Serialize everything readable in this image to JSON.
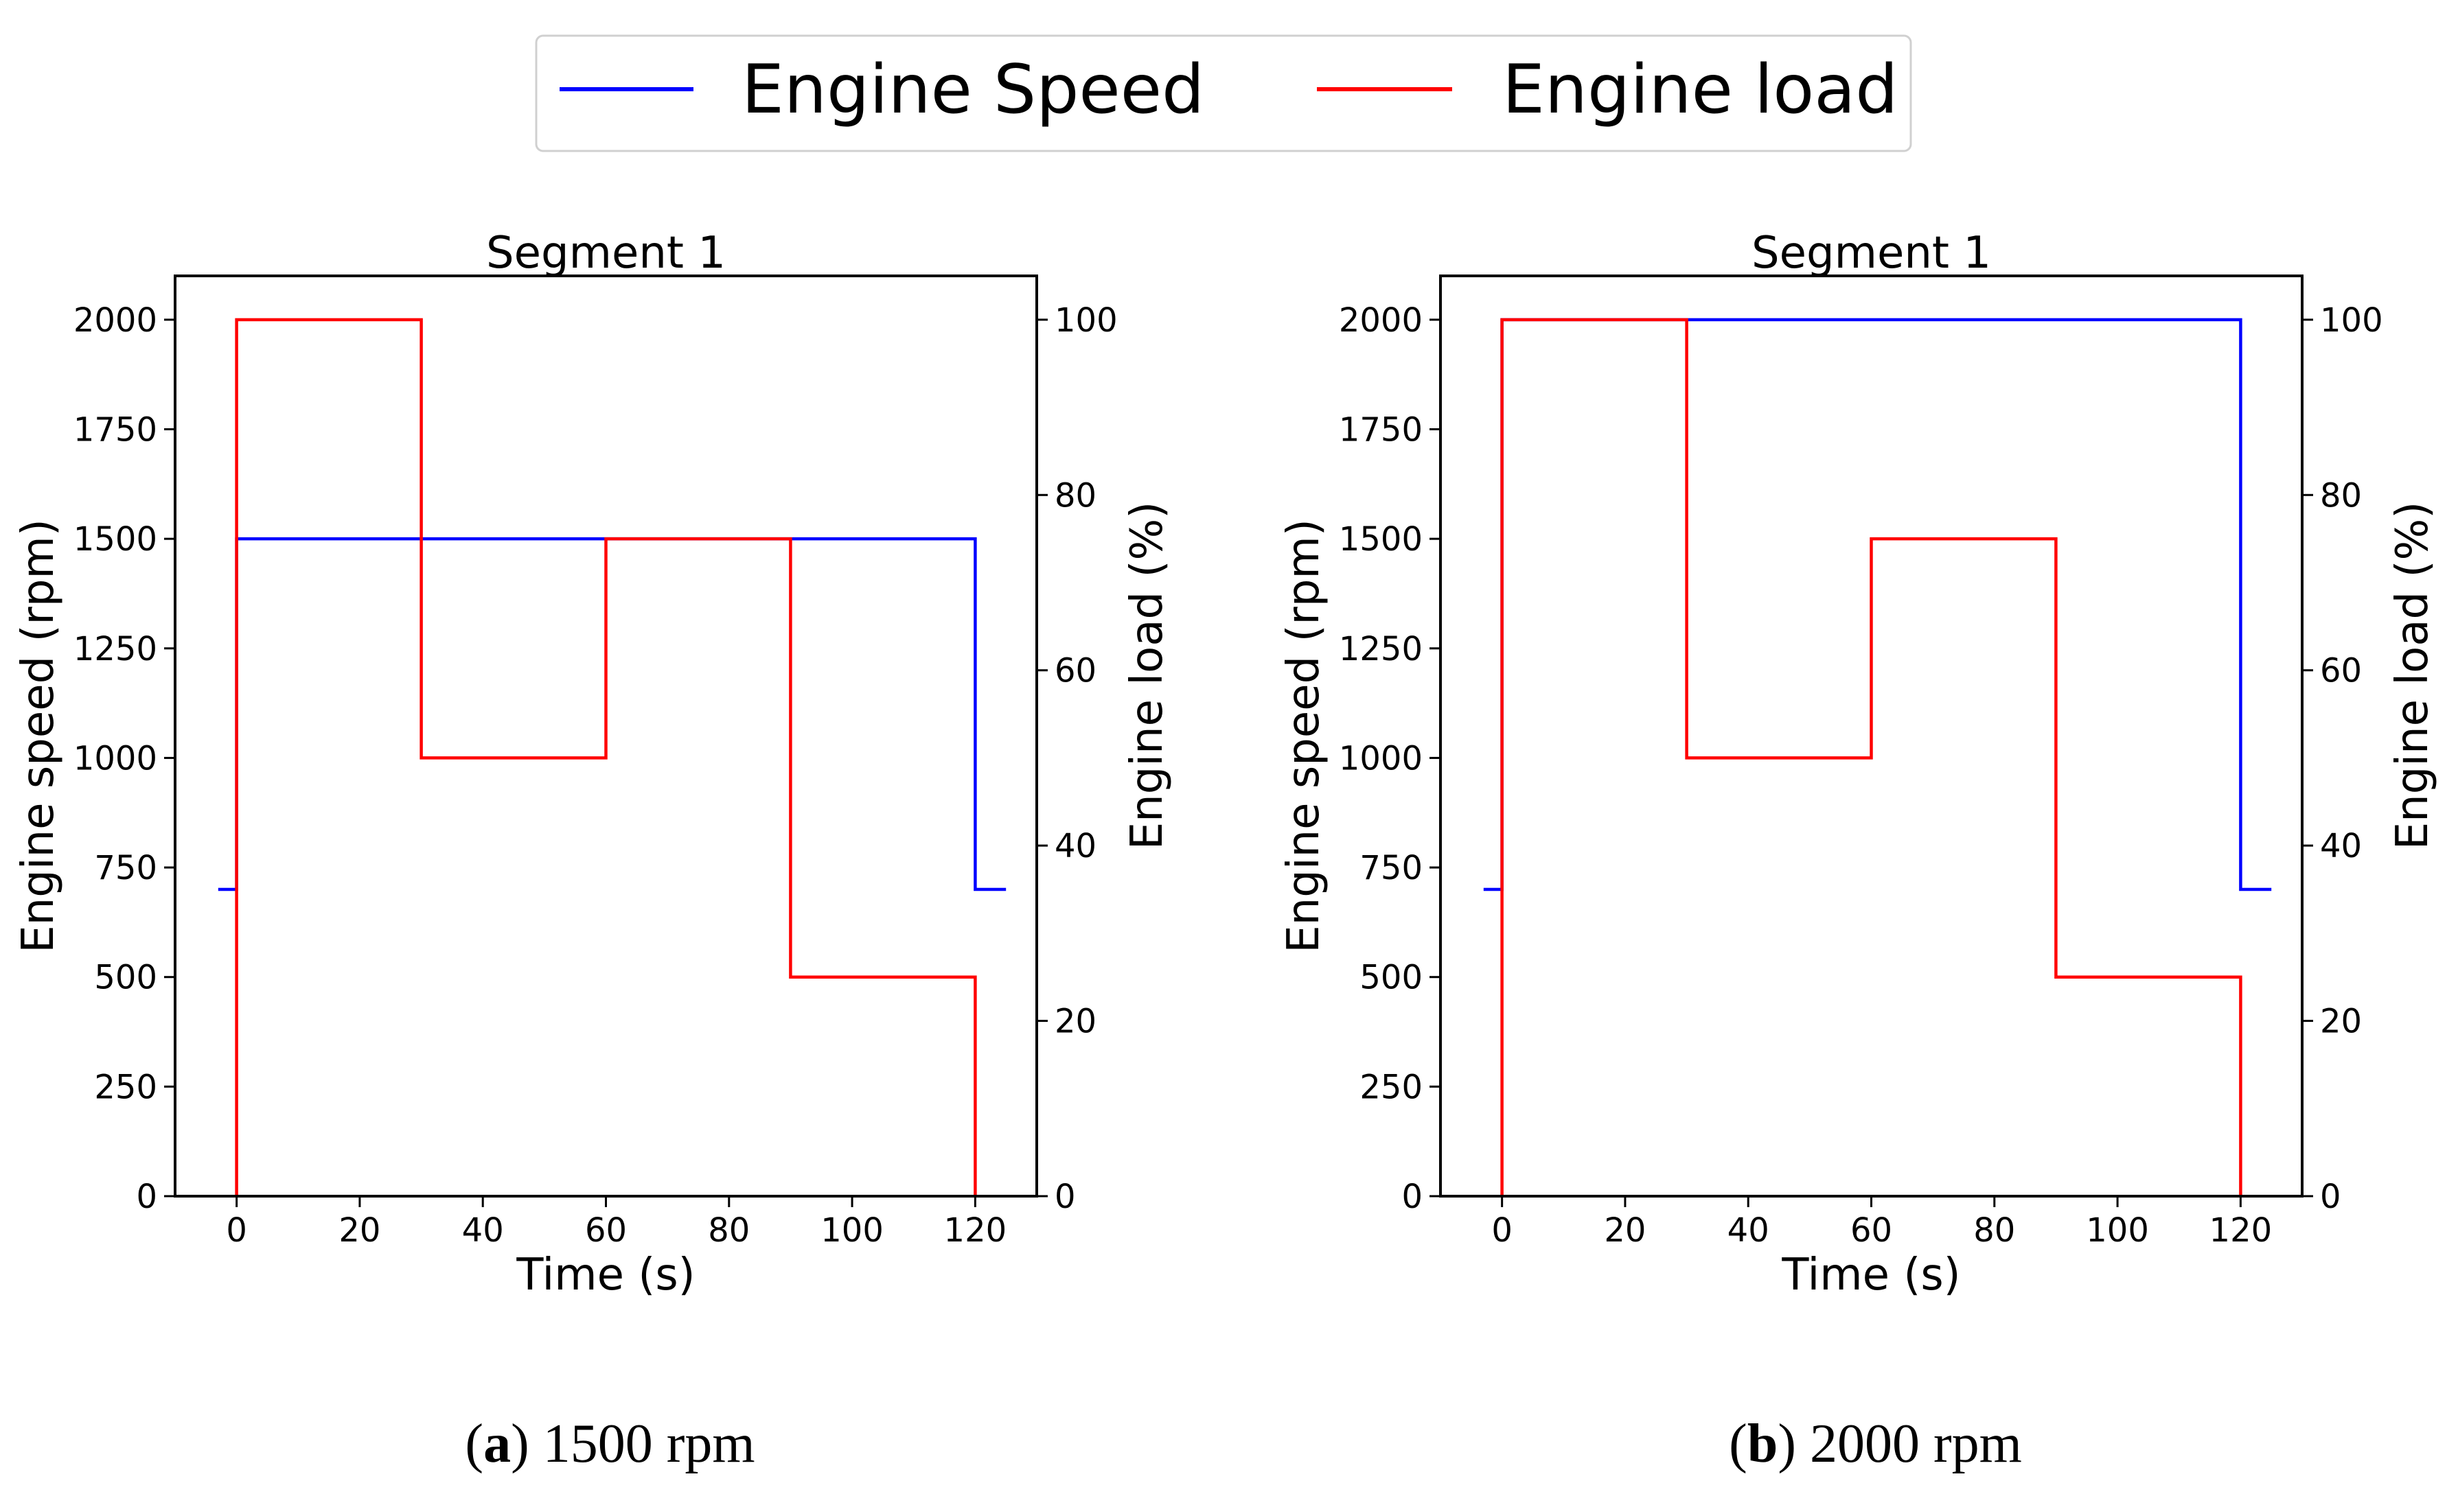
{
  "legend": {
    "entries": [
      {
        "name": "Engine Speed",
        "color": "#0000ff"
      },
      {
        "name": "Engine load",
        "color": "#ff0000"
      }
    ]
  },
  "chart_data": [
    {
      "type": "line",
      "title": "Segment 1",
      "xlabel": "Time (s)",
      "ylabel": "Engine speed (rpm)",
      "y2label": "Engine load (%)",
      "xlim": [
        -10,
        130
      ],
      "ylim": [
        0,
        2100
      ],
      "y2lim": [
        0,
        105
      ],
      "xticks": [
        0,
        20,
        40,
        60,
        80,
        100,
        120
      ],
      "yticks": [
        0,
        250,
        500,
        750,
        1000,
        1250,
        1500,
        1750,
        2000
      ],
      "y2ticks": [
        0,
        20,
        40,
        60,
        80,
        100
      ],
      "series": [
        {
          "name": "Engine Speed",
          "axis": "left",
          "color": "#0000ff",
          "x": [
            -3,
            0,
            0,
            120,
            120,
            125
          ],
          "y": [
            700,
            700,
            1500,
            1500,
            700,
            700
          ]
        },
        {
          "name": "Engine load",
          "axis": "right",
          "color": "#ff0000",
          "x": [
            0,
            0,
            30,
            30,
            60,
            60,
            90,
            90,
            120,
            120
          ],
          "y": [
            0,
            100,
            100,
            50,
            50,
            75,
            75,
            25,
            25,
            0
          ]
        }
      ],
      "caption": {
        "label": "a",
        "text": "1500 rpm"
      }
    },
    {
      "type": "line",
      "title": "Segment 1",
      "xlabel": "Time (s)",
      "ylabel": "Engine speed (rpm)",
      "y2label": "Engine load (%)",
      "xlim": [
        -10,
        130
      ],
      "ylim": [
        0,
        2100
      ],
      "y2lim": [
        0,
        105
      ],
      "xticks": [
        0,
        20,
        40,
        60,
        80,
        100,
        120
      ],
      "yticks": [
        0,
        250,
        500,
        750,
        1000,
        1250,
        1500,
        1750,
        2000
      ],
      "y2ticks": [
        0,
        20,
        40,
        60,
        80,
        100
      ],
      "series": [
        {
          "name": "Engine Speed",
          "axis": "left",
          "color": "#0000ff",
          "x": [
            -3,
            0,
            0,
            120,
            120,
            125
          ],
          "y": [
            700,
            700,
            2000,
            2000,
            700,
            700
          ]
        },
        {
          "name": "Engine load",
          "axis": "right",
          "color": "#ff0000",
          "x": [
            0,
            0,
            30,
            30,
            60,
            60,
            90,
            90,
            120,
            120
          ],
          "y": [
            0,
            100,
            100,
            50,
            50,
            75,
            75,
            25,
            25,
            0
          ]
        }
      ],
      "caption": {
        "label": "b",
        "text": "2000 rpm"
      }
    }
  ]
}
